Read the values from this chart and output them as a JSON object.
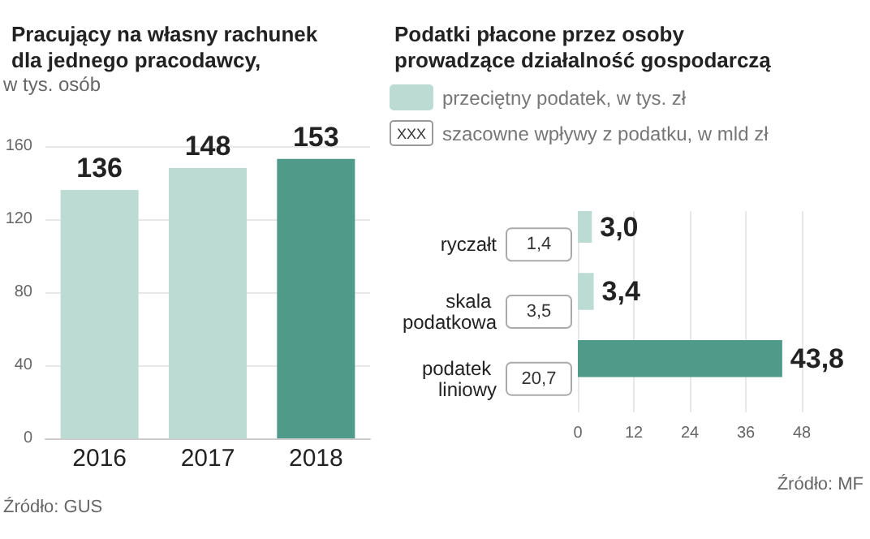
{
  "chart_data": [
    {
      "type": "bar",
      "title": "Pracujący na własny rachunek dla jednego pracodawcy,",
      "ylabel": "w tys. osób",
      "categories": [
        "2016",
        "2017",
        "2018"
      ],
      "series": [
        {
          "colors": [
            "#bcdcd3",
            "#bcdcd3",
            "#4f9a88"
          ],
          "values": [
            136,
            148,
            153
          ]
        }
      ],
      "ylim": [
        0,
        160
      ],
      "yticks": [
        0,
        40,
        80,
        120,
        160
      ],
      "grid": "y",
      "data_labels": true,
      "annotations": [
        "Źródło: GUS"
      ]
    },
    {
      "type": "bar",
      "orientation": "horizontal",
      "title": "Podatki płacone przez osoby prowadzące działalność gospodarczą",
      "categories": [
        "ryczałt",
        "skala podatkowa",
        "podatek liniowy"
      ],
      "series": [
        {
          "name": "przeciętny podatek, w tys. zł",
          "color": "#bcdcd3",
          "colors": [
            "#bcdcd3",
            "#bcdcd3",
            "#4f9a88"
          ],
          "values": [
            3.0,
            3.4,
            43.8
          ],
          "value_labels": [
            "3,0",
            "3,4",
            "43,8"
          ]
        },
        {
          "name": "szacowne wpływy z podatku, w mld zł",
          "color": "#ffffff",
          "values": [
            null,
            null,
            null
          ]
        }
      ],
      "xlim": [
        0,
        48
      ],
      "xticks": [
        0,
        12,
        24,
        36,
        48
      ],
      "grid": "x",
      "legend": "top",
      "annotations": [
        "XXX",
        "1,4",
        "3,5",
        "20,7",
        "Źródło: MF"
      ]
    }
  ]
}
